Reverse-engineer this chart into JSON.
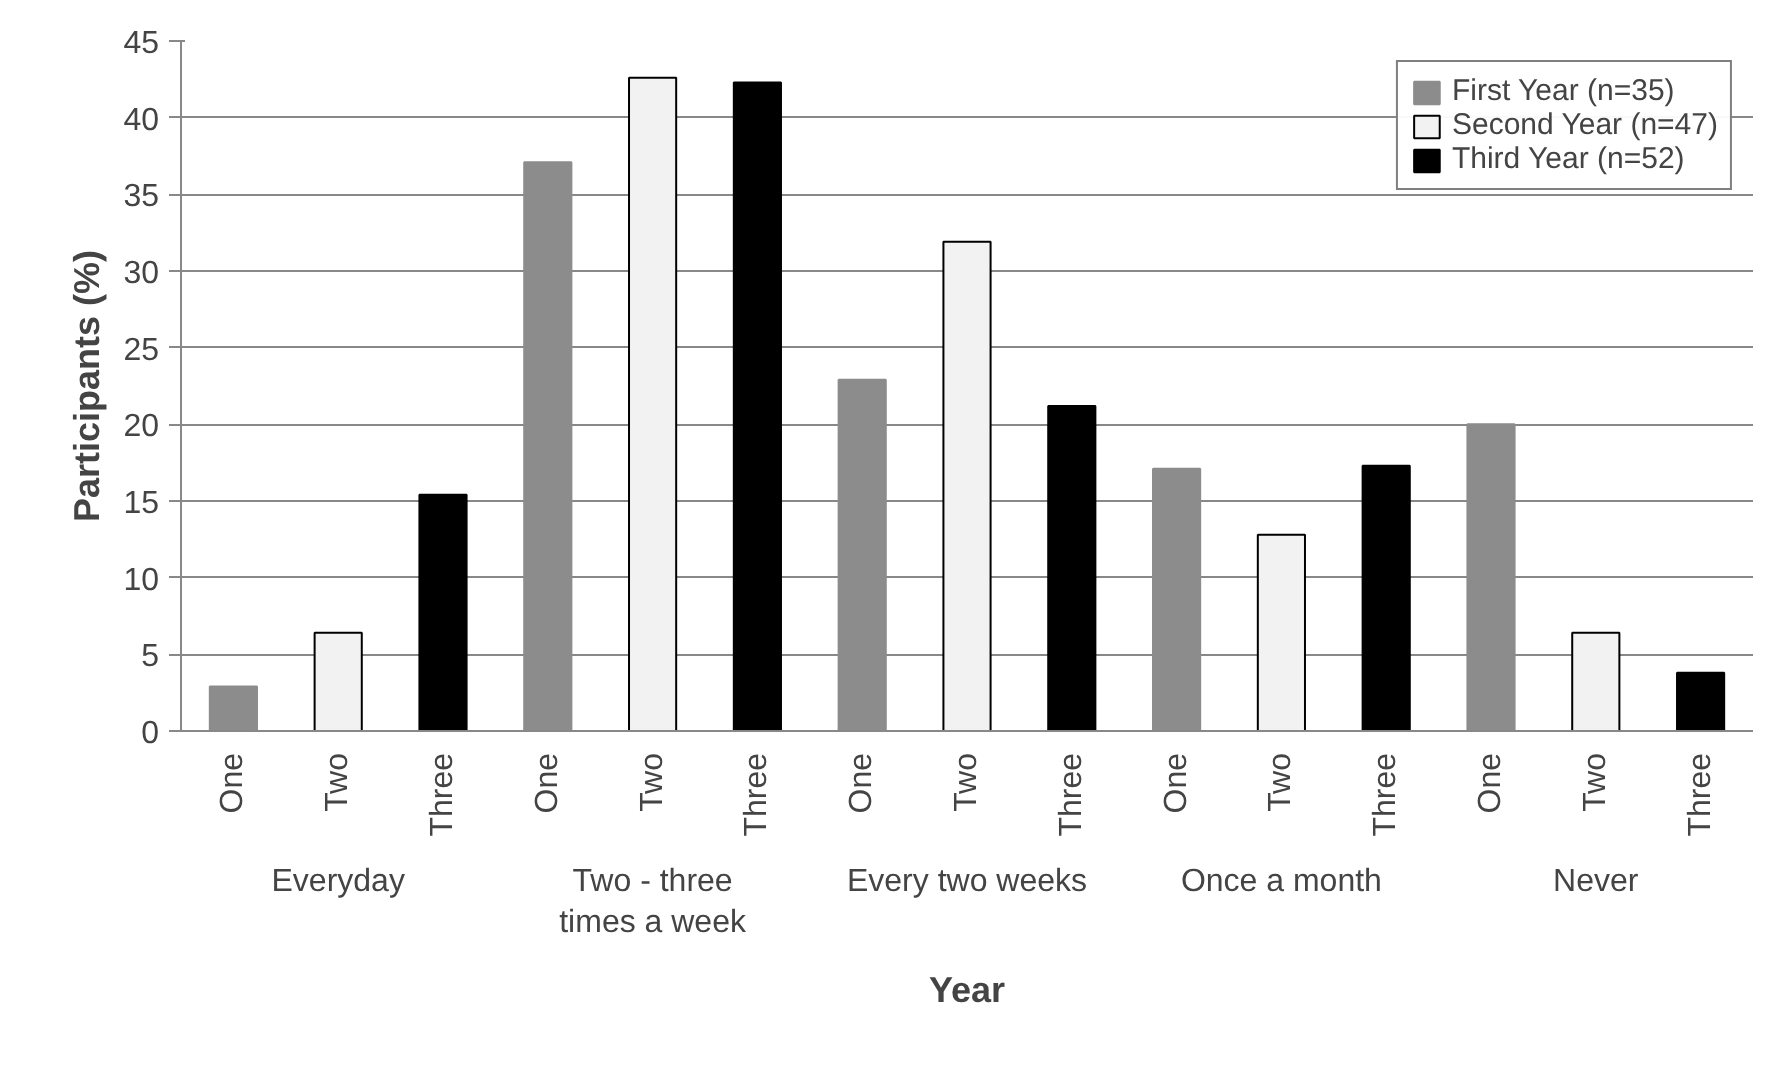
{
  "chart_data": {
    "type": "bar",
    "xlabel": "Year",
    "ylabel": "Participants (%)",
    "categories": [
      "One",
      "Two",
      "Three",
      "One",
      "Two",
      "Three",
      "One",
      "Two",
      "Three",
      "One",
      "Two",
      "Three",
      "One",
      "Two",
      "Three"
    ],
    "annotations": [
      "Everyday",
      "Two - three times a week",
      "Every two weeks",
      "Once a month",
      "Never"
    ],
    "series": [
      {
        "name": "First Year (n=35)",
        "color": "#8c8c8c",
        "values": [
          2.9,
          null,
          null,
          37.1,
          null,
          null,
          22.9,
          null,
          null,
          17.1,
          null,
          null,
          20.0,
          null,
          null
        ]
      },
      {
        "name": "Second Year (n=47)",
        "color": "#f2f2f2",
        "values": [
          null,
          6.4,
          null,
          null,
          42.6,
          null,
          null,
          31.9,
          null,
          null,
          12.8,
          null,
          null,
          6.4,
          null
        ]
      },
      {
        "name": "Third Year (n=52)",
        "color": "#000000",
        "values": [
          null,
          null,
          15.4,
          null,
          null,
          42.3,
          null,
          null,
          21.2,
          null,
          null,
          17.3,
          null,
          null,
          3.8
        ]
      }
    ],
    "ylim": [
      0,
      45
    ],
    "yticks": [
      0,
      5,
      10,
      15,
      20,
      25,
      30,
      35,
      40,
      45
    ],
    "grid": "y",
    "legend": "top right"
  }
}
